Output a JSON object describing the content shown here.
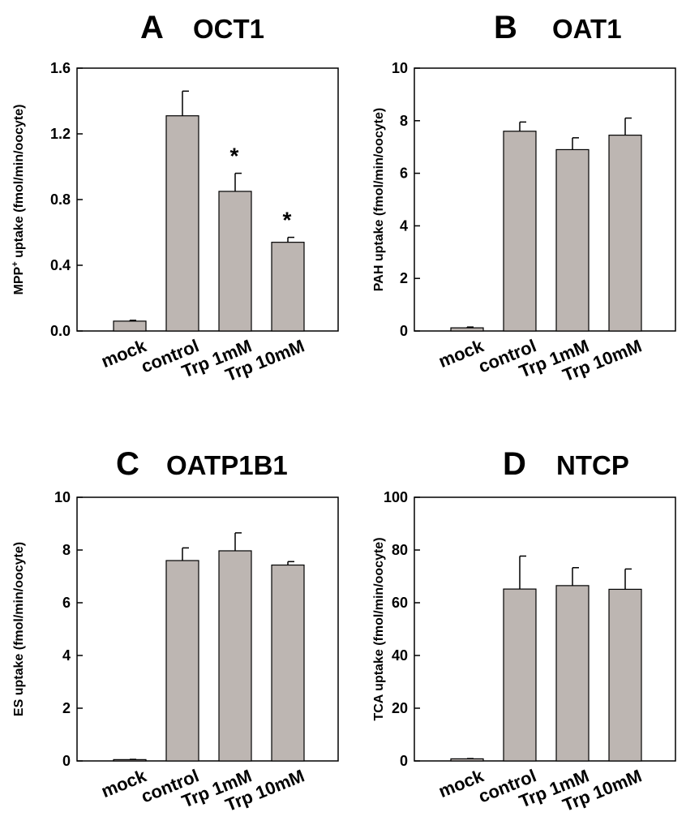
{
  "chart_data": [
    {
      "type": "bar",
      "panel_letter": "A",
      "title": "OCT1",
      "ylabel": "MPP+ uptake (fmol/min/oocyte)",
      "ylabel_main": "MPP",
      "ylabel_sup": "+",
      "ylabel_rest": " uptake (fmol/min/oocyte)",
      "categories": [
        "mock",
        "control",
        "Trp 1mM",
        "Trp 10mM"
      ],
      "values": [
        0.06,
        1.31,
        0.85,
        0.54
      ],
      "errors": [
        0.005,
        0.15,
        0.11,
        0.03
      ],
      "significance": [
        "",
        "",
        "*",
        "*"
      ],
      "ylim": [
        0,
        1.6
      ],
      "yticks": [
        0.0,
        0.4,
        0.8,
        1.2,
        1.6
      ],
      "ytick_labels": [
        "0.0",
        "0.4",
        "0.8",
        "1.2",
        "1.6"
      ],
      "bar_color": "#bdb6b2"
    },
    {
      "type": "bar",
      "panel_letter": "B",
      "title": "OAT1",
      "ylabel": "PAH uptake (fmol/min/oocyte)",
      "categories": [
        "mock",
        "control",
        "Trp 1mM",
        "Trp 10mM"
      ],
      "values": [
        0.12,
        7.6,
        6.9,
        7.45
      ],
      "errors": [
        0.03,
        0.35,
        0.45,
        0.65
      ],
      "significance": [
        "",
        "",
        "",
        ""
      ],
      "ylim": [
        0,
        10
      ],
      "yticks": [
        0,
        2,
        4,
        6,
        8,
        10
      ],
      "ytick_labels": [
        "0",
        "2",
        "4",
        "6",
        "8",
        "10"
      ],
      "bar_color": "#bdb6b2"
    },
    {
      "type": "bar",
      "panel_letter": "C",
      "title": "OATP1B1",
      "ylabel": "ES uptake (fmol/min/oocyte)",
      "categories": [
        "mock",
        "control",
        "Trp 1mM",
        "Trp 10mM"
      ],
      "values": [
        0.05,
        7.6,
        7.97,
        7.43
      ],
      "errors": [
        0.01,
        0.48,
        0.68,
        0.13
      ],
      "significance": [
        "",
        "",
        "",
        ""
      ],
      "ylim": [
        0,
        10
      ],
      "yticks": [
        0,
        2,
        4,
        6,
        8,
        10
      ],
      "ytick_labels": [
        "0",
        "2",
        "4",
        "6",
        "8",
        "10"
      ],
      "bar_color": "#bdb6b2"
    },
    {
      "type": "bar",
      "panel_letter": "D",
      "title": "NTCP",
      "ylabel": "TCA uptake (fmol/min/oocyte)",
      "categories": [
        "mock",
        "control",
        "Trp 1mM",
        "Trp 10mM"
      ],
      "values": [
        0.8,
        65.2,
        66.5,
        65.1
      ],
      "errors": [
        0.1,
        12.5,
        6.8,
        7.7
      ],
      "significance": [
        "",
        "",
        "",
        ""
      ],
      "ylim": [
        0,
        100
      ],
      "yticks": [
        0,
        20,
        40,
        60,
        80,
        100
      ],
      "ytick_labels": [
        "0",
        "20",
        "40",
        "60",
        "80",
        "100"
      ],
      "bar_color": "#bdb6b2"
    }
  ]
}
